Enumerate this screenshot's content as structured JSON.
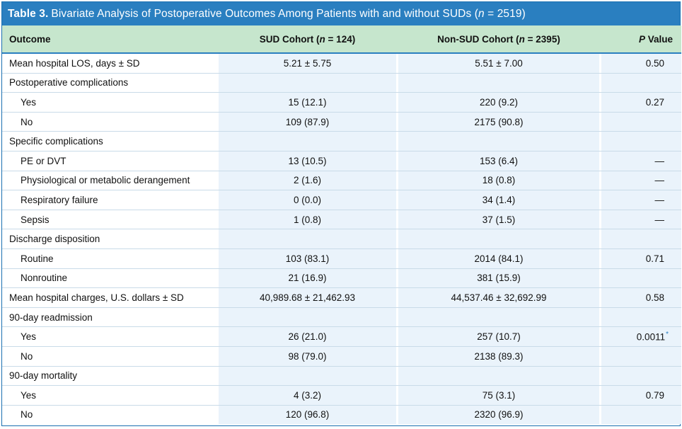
{
  "table": {
    "number": "Table 3.",
    "title_before": "Bivariate Analysis of Postoperative Outcomes Among Patients with and without SUDs (",
    "title_n": "n",
    "title_after": " = 2519)",
    "headers": {
      "outcome": "Outcome",
      "sud_prefix": "SUD Cohort (",
      "sud_n": "n",
      "sud_suffix": " = 124)",
      "nonsud_prefix": "Non-SUD Cohort (",
      "nonsud_n": "n",
      "nonsud_suffix": " = 2395)",
      "p_value_p": "P",
      "p_value_rest": " Value"
    },
    "rows": [
      {
        "label": "Mean hospital LOS, days ± SD",
        "sud": "5.21 ± 5.75",
        "nonsud": "5.51 ± 7.00",
        "p": "0.50",
        "mark": ""
      },
      {
        "label": "Postoperative complications",
        "sud": "",
        "nonsud": "",
        "p": "",
        "mark": ""
      },
      {
        "label": "Yes",
        "sud": "15 (12.1)",
        "nonsud": "220 (9.2)",
        "p": "0.27",
        "mark": ""
      },
      {
        "label": "No",
        "sud": "109 (87.9)",
        "nonsud": "2175 (90.8)",
        "p": "",
        "mark": ""
      },
      {
        "label": "Specific complications",
        "sud": "",
        "nonsud": "",
        "p": "",
        "mark": ""
      },
      {
        "label": "PE or DVT",
        "sud": "13 (10.5)",
        "nonsud": "153 (6.4)",
        "p": "—",
        "mark": ""
      },
      {
        "label": "Physiological or metabolic derangement",
        "sud": "2 (1.6)",
        "nonsud": "18 (0.8)",
        "p": "—",
        "mark": ""
      },
      {
        "label": "Respiratory failure",
        "sud": "0 (0.0)",
        "nonsud": "34 (1.4)",
        "p": "—",
        "mark": ""
      },
      {
        "label": "Sepsis",
        "sud": "1 (0.8)",
        "nonsud": "37 (1.5)",
        "p": "—",
        "mark": ""
      },
      {
        "label": "Discharge disposition",
        "sud": "",
        "nonsud": "",
        "p": "",
        "mark": ""
      },
      {
        "label": "Routine",
        "sud": "103 (83.1)",
        "nonsud": "2014 (84.1)",
        "p": "0.71",
        "mark": ""
      },
      {
        "label": "Nonroutine",
        "sud": "21 (16.9)",
        "nonsud": "381 (15.9)",
        "p": "",
        "mark": ""
      },
      {
        "label": "Mean hospital charges, U.S. dollars ± SD",
        "sud": "40,989.68 ± 21,462.93",
        "nonsud": "44,537.46 ± 32,692.99",
        "p": "0.58",
        "mark": ""
      },
      {
        "label": "90-day readmission",
        "sud": "",
        "nonsud": "",
        "p": "",
        "mark": ""
      },
      {
        "label": "Yes",
        "sud": "26 (21.0)",
        "nonsud": "257 (10.7)",
        "p": "0.0011",
        "mark": "*"
      },
      {
        "label": "No",
        "sud": "98 (79.0)",
        "nonsud": "2138 (89.3)",
        "p": "",
        "mark": ""
      },
      {
        "label": "90-day mortality",
        "sud": "",
        "nonsud": "",
        "p": "",
        "mark": ""
      },
      {
        "label": "Yes",
        "sud": "4 (3.2)",
        "nonsud": "75 (3.1)",
        "p": "0.79",
        "mark": ""
      },
      {
        "label": "No",
        "sud": "120 (96.8)",
        "nonsud": "2320 (96.9)",
        "p": "",
        "mark": ""
      }
    ]
  },
  "colors": {
    "title_bar": "#2a7fc0",
    "header_bg": "#c6e6cd",
    "cell_bg": "#eaf3fb",
    "rule": "#c9dbe8"
  }
}
